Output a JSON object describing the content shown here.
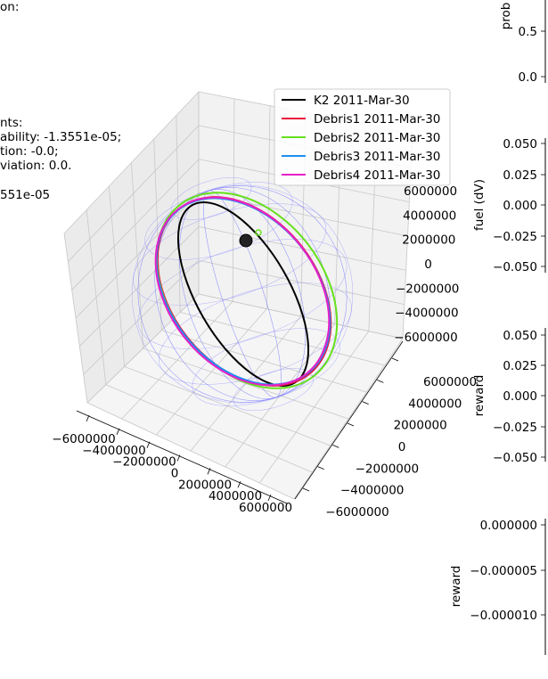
{
  "side_text": [
    "on:",
    "nts:",
    "ability: -1.3551e-05;",
    "tion: -0.0;",
    "viation: 0.0.",
    "551e-05"
  ],
  "chart_data": [
    {
      "type": "line3d",
      "legend_position": "top-right",
      "legend": [
        {
          "label": "K2 2011-Mar-30",
          "color": "#000000"
        },
        {
          "label": "Debris1 2011-Mar-30",
          "color": "#e8123c"
        },
        {
          "label": "Debris2 2011-Mar-30",
          "color": "#66e01c"
        },
        {
          "label": "Debris3 2011-Mar-30",
          "color": "#1e8ef0"
        },
        {
          "label": "Debris4 2011-Mar-30",
          "color": "#e620c8"
        }
      ],
      "x_ticks": [
        "−6000000",
        "−4000000",
        "−2000000",
        "0",
        "2000000",
        "4000000",
        "6000000"
      ],
      "y_ticks": [
        "6000000",
        "4000000",
        "2000000",
        "0",
        "−2000000",
        "−4000000",
        "−6000000"
      ],
      "z_ticks": [
        "6000000",
        "4000000",
        "2000000",
        "0",
        "−2000000",
        "−4000000",
        "−6000000"
      ],
      "earth_wireframe_color": "#7a7aff",
      "grid": true
    },
    {
      "type": "line",
      "ylabel": "prob",
      "yticks": [
        "0.5",
        "0.0"
      ]
    },
    {
      "type": "line",
      "ylabel": "fuel (dV)",
      "yticks": [
        "0.050",
        "0.025",
        "0.000",
        "−0.025",
        "−0.050"
      ]
    },
    {
      "type": "line",
      "ylabel": "reward",
      "yticks": [
        "0.050",
        "0.025",
        "0.000",
        "−0.025",
        "−0.050"
      ]
    },
    {
      "type": "line",
      "ylabel": "reward",
      "yticks": [
        "0.000000",
        "−0.000005",
        "−0.000010"
      ]
    }
  ]
}
